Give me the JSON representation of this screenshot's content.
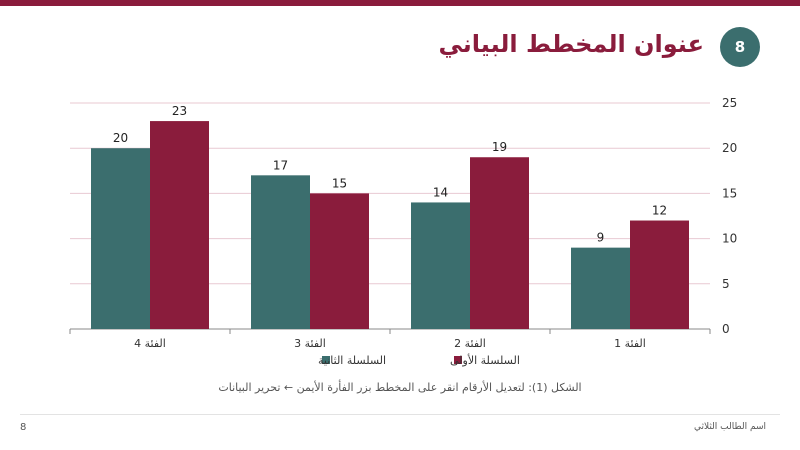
{
  "slide": {
    "title": "عنوان المخطط البياني",
    "badge_number": "8",
    "caption": "الشكل (1): لتعديل الأرقام انقر على المخطط بزر الفأرة الأيمن ← تحرير البيانات",
    "footer_page": "8",
    "footer_author": "اسم الطالب الثلاثي"
  },
  "colors": {
    "accent": "#8a1c3c",
    "teal": "#3b6e6e",
    "grid": "#e8c9d2"
  },
  "chart_data": {
    "type": "bar",
    "title": "",
    "xlabel": "",
    "ylabel": "",
    "categories": [
      "الفئة 1",
      "الفئة 2",
      "الفئة 3",
      "الفئة 4"
    ],
    "series": [
      {
        "name": "السلسلة الأولى",
        "values": [
          12,
          19,
          15,
          23
        ],
        "color": "#8a1c3c"
      },
      {
        "name": "السلسلة الثانية",
        "values": [
          9,
          14,
          17,
          20
        ],
        "color": "#3b6e6e"
      }
    ],
    "ylim": [
      0,
      25
    ],
    "yticks": [
      0,
      5,
      10,
      15,
      20,
      25
    ],
    "x_axis_direction": "right-to-left",
    "y_axis_side": "right",
    "grid": true,
    "legend_position": "bottom",
    "data_labels": true
  }
}
